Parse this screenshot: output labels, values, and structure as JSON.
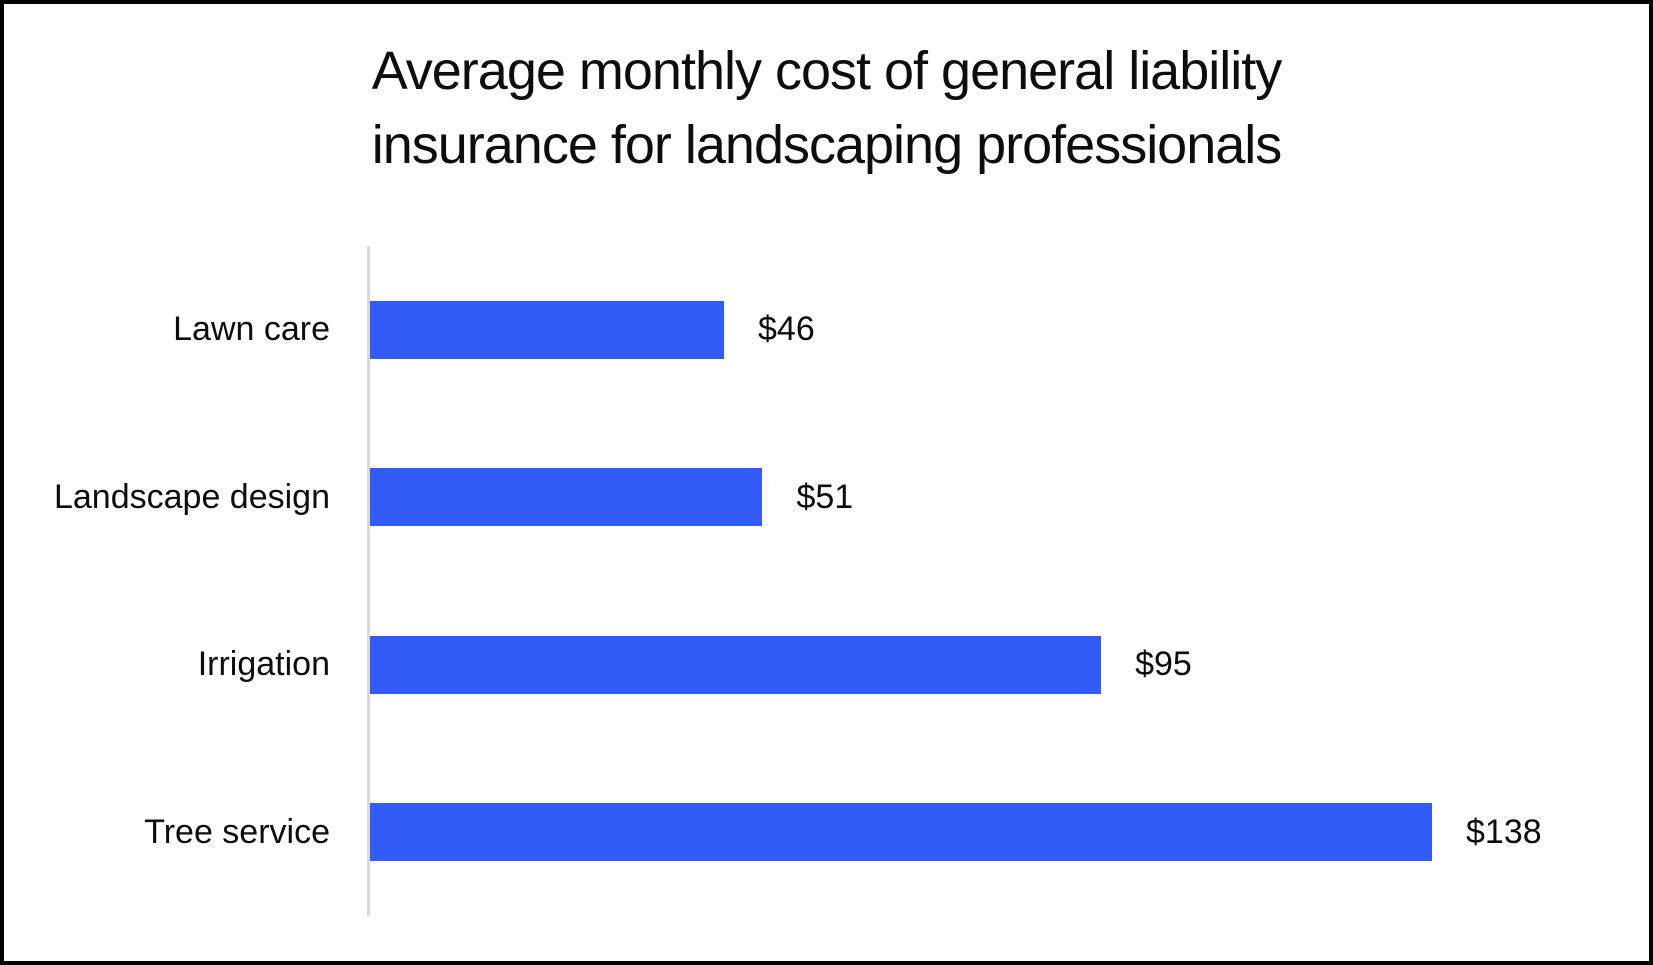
{
  "title": {
    "line1": "Average monthly cost of general liability",
    "line2": "insurance for landscaping professionals"
  },
  "chart_data": {
    "type": "bar",
    "orientation": "horizontal",
    "title": "Average monthly cost of general liability insurance for landscaping professionals",
    "categories": [
      "Lawn care",
      "Landscape design",
      "Irrigation",
      "Tree service"
    ],
    "values": [
      46,
      51,
      95,
      138
    ],
    "value_labels": [
      "$46",
      "$51",
      "$95",
      "$138"
    ],
    "xlabel": "",
    "ylabel": "",
    "xlim": [
      0,
      138
    ],
    "grid": false,
    "legend": false,
    "data_labels": "outside-end",
    "bar_color": "#335CF6",
    "axis_line_color": "#D9D9D9",
    "text_color": "#0d0d0d",
    "background_color": "#FFFFFF",
    "frame_border_color": "#000000"
  }
}
